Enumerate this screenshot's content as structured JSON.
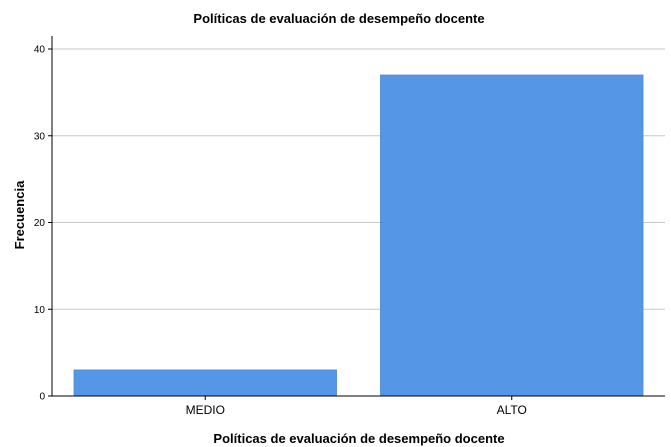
{
  "chart_data": {
    "type": "bar",
    "title": "Políticas de evaluación de desempeño docente",
    "xlabel": "Políticas de evaluación de desempeño docente",
    "ylabel": "Frecuencia",
    "categories": [
      "MEDIO",
      "ALTO"
    ],
    "values": [
      3,
      37
    ],
    "ylim": [
      0,
      40
    ],
    "yticks": [
      0,
      10,
      20,
      30,
      40
    ],
    "grid": true,
    "bar_color": "#5596e6",
    "bar_stroke": "#4a86cf",
    "grid_color": "#c8c8c8",
    "axis_color": "#000000"
  }
}
